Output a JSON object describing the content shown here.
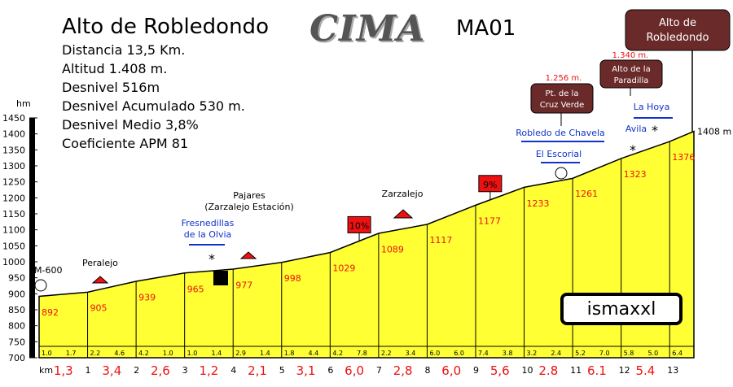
{
  "header": {
    "title": "Alto de Robledondo",
    "code": "MA01",
    "logo_text": "CIMA",
    "stats": [
      "Distancia 13,5 Km.",
      "Altitud 1.408 m.",
      "Desnivel 516m",
      "Desnivel Acumulado 530 m.",
      "Desnivel Medio 3,8%",
      "Coeficiente APM 81"
    ],
    "credit": "ismaxxl"
  },
  "chart_data": {
    "type": "area",
    "ylabel": "hm",
    "xlabel": "km",
    "ylim": [
      700,
      1450
    ],
    "xlim": [
      0,
      13.5
    ],
    "y_ticks": [
      700,
      750,
      800,
      850,
      900,
      950,
      1000,
      1050,
      1100,
      1150,
      1200,
      1250,
      1300,
      1350,
      1400,
      1450
    ],
    "x_ticks": [
      "0",
      "1",
      "2",
      "3",
      "4",
      "5",
      "6",
      "7",
      "8",
      "9",
      "10",
      "11",
      "12",
      "13"
    ],
    "profile": {
      "x": [
        0,
        1,
        2,
        3,
        4,
        5,
        6,
        7,
        8,
        9,
        10,
        11,
        12,
        13,
        13.5
      ],
      "y": [
        892,
        905,
        939,
        965,
        977,
        998,
        1029,
        1089,
        1117,
        1177,
        1233,
        1261,
        1323,
        1376,
        1408
      ]
    },
    "km_altitude_labels": [
      "892",
      "905",
      "939",
      "965",
      "977",
      "998",
      "1029",
      "1089",
      "1117",
      "1177",
      "1233",
      "1261",
      "1323",
      "1376"
    ],
    "segment_gradients": [
      "1,3",
      "3,4",
      "2,6",
      "1,2",
      "2,1",
      "3,1",
      "6,0",
      "2,8",
      "6,0",
      "5,6",
      "2.8",
      "6.1",
      "5.4"
    ],
    "half_km_gradients": [
      "1.0",
      "1.7",
      "2.2",
      "4.6",
      "4.2",
      "1.0",
      "1.0",
      "1.4",
      "2.9",
      "1.4",
      "1.8",
      "4.4",
      "4.2",
      "7.8",
      "2.2",
      "3.4",
      "6.0",
      "6.0",
      "7.4",
      "3.8",
      "3.2",
      "2.4",
      "5.2",
      "7.0",
      "5.8",
      "5.0",
      "6.4"
    ],
    "end_altitude": "1408 m",
    "max_gradient_badges": [
      {
        "label": "10%",
        "km": 6.6
      },
      {
        "label": "9%",
        "km": 9.3
      }
    ],
    "places": [
      {
        "label": "M-600",
        "km": 0
      },
      {
        "label": "Peralejo",
        "km": 1.2
      },
      {
        "label": "Pajares",
        "sub": "(Zarzalejo Estación)",
        "km": 4.3
      },
      {
        "label": "Fresnedillas",
        "sub": "de la Olvia",
        "km": 3.5
      },
      {
        "label": "Zarzalejo",
        "km": 7.8
      },
      {
        "label": "Robledo de Chavela",
        "km": 11.1
      },
      {
        "label": "El Escorial",
        "km": 11.1
      },
      {
        "label": "Avila",
        "km": 12.3
      },
      {
        "label": "La Hoya",
        "km": 12.6
      }
    ],
    "passes": [
      {
        "name": "Pt. de la Cruz Verde",
        "altitude": "1.256 m.",
        "km": 11.0
      },
      {
        "name": "Alto de la Paradilla",
        "altitude": "1.340 m.",
        "km": 12.2
      },
      {
        "name": "Alto de Robledondo",
        "km": 13.5
      }
    ]
  },
  "colors": {
    "fill": "#ffff33",
    "line": "#000000",
    "red": "#ee1111",
    "blue": "#1133cc",
    "pass_box": "#6b2a2a"
  }
}
